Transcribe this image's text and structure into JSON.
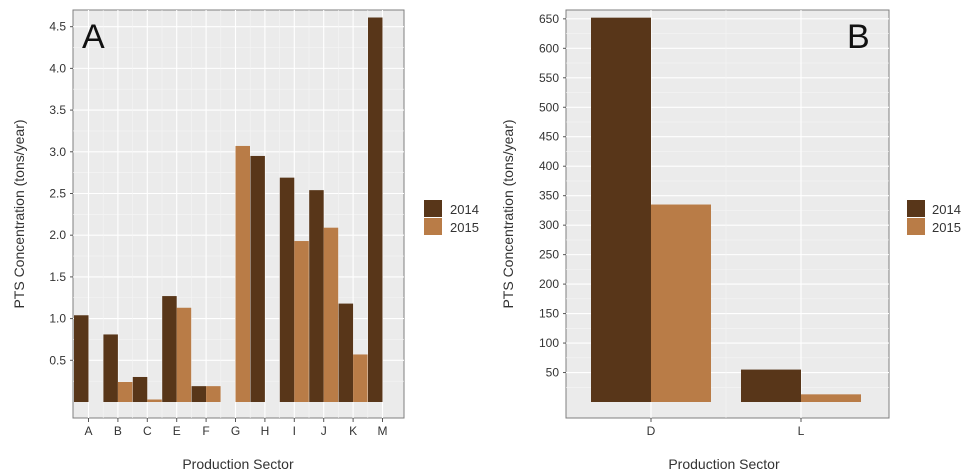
{
  "colors": {
    "2014": "#583619",
    "2015": "#b97c47",
    "panel_bg": "#ebebeb",
    "grid": "#ffffff"
  },
  "chart_data": [
    {
      "type": "bar",
      "panel_label": "A",
      "xlabel": "Production Sector",
      "ylabel": "PTS Concentration (tons/year)",
      "categories": [
        "A",
        "B",
        "C",
        "E",
        "F",
        "G",
        "H",
        "I",
        "J",
        "K",
        "M"
      ],
      "series": [
        {
          "name": "2014",
          "values": [
            1.04,
            0.81,
            0.3,
            1.27,
            0.19,
            null,
            2.95,
            2.69,
            2.54,
            1.18,
            4.61
          ]
        },
        {
          "name": "2015",
          "values": [
            null,
            0.24,
            0.03,
            1.13,
            0.19,
            3.07,
            null,
            1.93,
            2.09,
            0.57,
            null
          ]
        }
      ],
      "yticks": [
        "0.5",
        "1.0",
        "1.5",
        "2.0",
        "2.5",
        "3.0",
        "3.5",
        "4.0",
        "4.5"
      ],
      "ylim": [
        0,
        4.7
      ],
      "grid": true,
      "legend_position": "right"
    },
    {
      "type": "bar",
      "panel_label": "B",
      "xlabel": "Production Sector",
      "ylabel": "PTS Concentration (tons/year)",
      "categories": [
        "D",
        "L"
      ],
      "series": [
        {
          "name": "2014",
          "values": [
            652,
            55
          ]
        },
        {
          "name": "2015",
          "values": [
            335,
            13
          ]
        }
      ],
      "yticks": [
        "50",
        "100",
        "150",
        "200",
        "250",
        "300",
        "350",
        "400",
        "450",
        "500",
        "550",
        "600",
        "650"
      ],
      "ylim": [
        0,
        665
      ],
      "grid": true,
      "legend_position": "right"
    }
  ]
}
